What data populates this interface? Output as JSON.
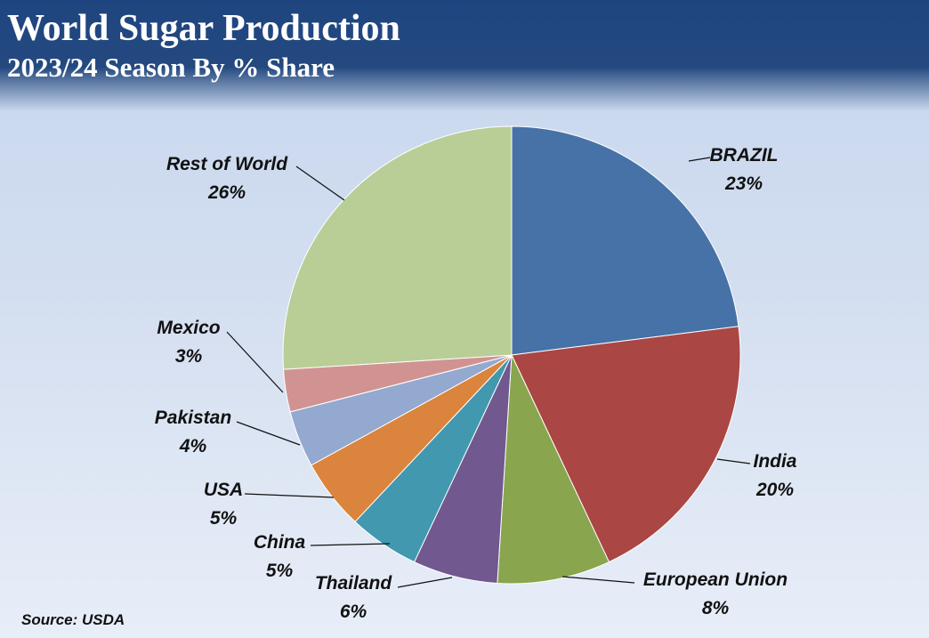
{
  "header": {
    "title": "World Sugar Production",
    "subtitle": "2023/24 Season By % Share"
  },
  "source": "Source: USDA",
  "chart_data": {
    "type": "pie",
    "title": "World Sugar Production",
    "subtitle": "2023/24 Season By % Share",
    "slices": [
      {
        "label": "BRAZIL",
        "value_label": "23%",
        "value": 23,
        "color": "#4672a8"
      },
      {
        "label": "India",
        "value_label": "20%",
        "value": 20,
        "color": "#aa4644"
      },
      {
        "label": "European Union",
        "value_label": "8%",
        "value": 8,
        "color": "#89a54e"
      },
      {
        "label": "Thailand",
        "value_label": "6%",
        "value": 6,
        "color": "#71588f"
      },
      {
        "label": "China",
        "value_label": "5%",
        "value": 5,
        "color": "#4198af"
      },
      {
        "label": "USA",
        "value_label": "5%",
        "value": 5,
        "color": "#db843d"
      },
      {
        "label": "Pakistan",
        "value_label": "4%",
        "value": 4,
        "color": "#93a9cf"
      },
      {
        "label": "Mexico",
        "value_label": "3%",
        "value": 3,
        "color": "#d19392"
      },
      {
        "label": "Rest of World",
        "value_label": "26%",
        "value": 26,
        "color": "#b9cd96"
      }
    ],
    "legend": "none"
  }
}
